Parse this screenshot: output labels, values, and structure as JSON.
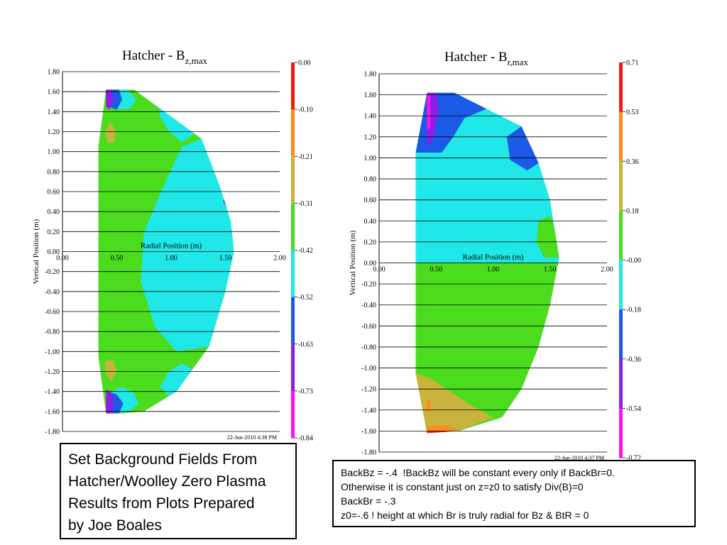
{
  "chart_data": [
    {
      "type": "heatmap",
      "title_main": "Hatcher - B",
      "title_sub": "z,max",
      "xlabel": "Radial Position (m)",
      "ylabel": "Vertical Position (m)",
      "xlim": [
        0,
        2
      ],
      "ylim": [
        -1.8,
        1.8
      ],
      "x_ticks": [
        "0.00",
        "0.50",
        "1.00",
        "1.50",
        "2.00"
      ],
      "y_ticks": [
        "1.80",
        "1.60",
        "1.40",
        "1.20",
        "1.00",
        "0.80",
        "0.60",
        "0.40",
        "0.20",
        "0.00",
        "-0.20",
        "-0.40",
        "-0.60",
        "-0.80",
        "-1.00",
        "-1.20",
        "-1.40",
        "-1.60",
        "-1.80"
      ],
      "colorbar_labels": [
        "0.00",
        "-0.10",
        "-0.21",
        "-0.31",
        "-0.42",
        "-0.52",
        "-0.63",
        "-0.73",
        "-0.84"
      ],
      "colorbar_colors": [
        "#ee1c0e",
        "#ff8c1a",
        "#c8b43c",
        "#4cdc1e",
        "#20e8e8",
        "#1a5ae6",
        "#8c1ee6",
        "#ff10f0"
      ],
      "footer": "22-Jun-2010   4:38 PM",
      "boundary": [
        [
          0.33,
          1.05
        ],
        [
          0.4,
          1.62
        ],
        [
          0.66,
          1.62
        ],
        [
          1.28,
          1.13
        ],
        [
          1.45,
          0.65
        ],
        [
          1.55,
          0.3
        ],
        [
          1.58,
          0
        ],
        [
          1.5,
          -0.4
        ],
        [
          1.35,
          -0.95
        ],
        [
          1.05,
          -1.4
        ],
        [
          0.75,
          -1.6
        ],
        [
          0.55,
          -1.62
        ],
        [
          0.4,
          -1.62
        ],
        [
          0.33,
          -1.05
        ]
      ],
      "regions": [
        {
          "color": "#4cdc1e",
          "points": [
            [
              0.33,
              1.05
            ],
            [
              0.4,
              1.62
            ],
            [
              0.66,
              1.62
            ],
            [
              1.28,
              1.13
            ],
            [
              1.45,
              0.65
            ],
            [
              1.55,
              0.3
            ],
            [
              1.58,
              0
            ],
            [
              1.5,
              -0.4
            ],
            [
              1.35,
              -0.95
            ],
            [
              1.05,
              -1.4
            ],
            [
              0.75,
              -1.6
            ],
            [
              0.55,
              -1.62
            ],
            [
              0.4,
              -1.62
            ],
            [
              0.33,
              -1.05
            ]
          ]
        },
        {
          "color": "#20e8e8",
          "points": [
            [
              1.28,
              1.13
            ],
            [
              1.1,
              1.05
            ],
            [
              0.95,
              0.7
            ],
            [
              0.75,
              0.2
            ],
            [
              0.72,
              -0.3
            ],
            [
              0.85,
              -0.75
            ],
            [
              1.05,
              -1.0
            ],
            [
              1.35,
              -0.95
            ],
            [
              1.5,
              -0.4
            ],
            [
              1.58,
              0
            ],
            [
              1.55,
              0.3
            ],
            [
              1.45,
              0.65
            ]
          ]
        },
        {
          "color": "#20e8e8",
          "points": [
            [
              0.88,
              1.5
            ],
            [
              1.0,
              1.5
            ],
            [
              1.12,
              1.33
            ],
            [
              1.22,
              1.18
            ],
            [
              1.1,
              1.1
            ],
            [
              0.98,
              1.2
            ],
            [
              0.9,
              1.35
            ]
          ]
        },
        {
          "color": "#20e8e8",
          "points": [
            [
              0.9,
              -1.35
            ],
            [
              0.98,
              -1.2
            ],
            [
              1.1,
              -1.12
            ],
            [
              1.2,
              -1.18
            ],
            [
              1.05,
              -1.4
            ],
            [
              0.98,
              -1.45
            ]
          ]
        },
        {
          "color": "#20e8e8",
          "points": [
            [
              0.45,
              1.62
            ],
            [
              0.6,
              1.62
            ],
            [
              0.68,
              1.52
            ],
            [
              0.62,
              1.43
            ],
            [
              0.5,
              1.42
            ]
          ]
        },
        {
          "color": "#20e8e8",
          "points": [
            [
              0.45,
              -1.4
            ],
            [
              0.55,
              -1.35
            ],
            [
              0.66,
              -1.42
            ],
            [
              0.7,
              -1.52
            ],
            [
              0.62,
              -1.6
            ],
            [
              0.48,
              -1.62
            ]
          ]
        },
        {
          "color": "#1a5ae6",
          "points": [
            [
              0.42,
              1.62
            ],
            [
              0.52,
              1.62
            ],
            [
              0.55,
              1.52
            ],
            [
              0.5,
              1.42
            ],
            [
              0.42,
              1.45
            ]
          ]
        },
        {
          "color": "#1a5ae6",
          "points": [
            [
              0.42,
              -1.4
            ],
            [
              0.5,
              -1.43
            ],
            [
              0.56,
              -1.52
            ],
            [
              0.52,
              -1.62
            ],
            [
              0.42,
              -1.62
            ]
          ]
        },
        {
          "color": "#8c1ee6",
          "points": [
            [
              0.4,
              1.62
            ],
            [
              0.46,
              1.62
            ],
            [
              0.47,
              1.5
            ],
            [
              0.43,
              1.42
            ],
            [
              0.4,
              1.45
            ]
          ]
        },
        {
          "color": "#8c1ee6",
          "points": [
            [
              0.4,
              -1.38
            ],
            [
              0.46,
              -1.42
            ],
            [
              0.47,
              -1.52
            ],
            [
              0.46,
              -1.62
            ],
            [
              0.4,
              -1.62
            ]
          ]
        },
        {
          "color": "#c8b43c",
          "points": [
            [
              0.39,
              1.2
            ],
            [
              0.44,
              1.3
            ],
            [
              0.49,
              1.2
            ],
            [
              0.48,
              1.1
            ],
            [
              0.42,
              1.08
            ]
          ]
        },
        {
          "color": "#c8b43c",
          "points": [
            [
              0.39,
              -1.1
            ],
            [
              0.46,
              -1.08
            ],
            [
              0.5,
              -1.2
            ],
            [
              0.45,
              -1.3
            ],
            [
              0.4,
              -1.22
            ]
          ]
        },
        {
          "color": "#1a5ae6",
          "points": [
            [
              1.5,
              0.58
            ],
            [
              1.55,
              0.45
            ],
            [
              1.53,
              0.4
            ],
            [
              1.48,
              0.5
            ]
          ]
        },
        {
          "color": "#1a5ae6",
          "points": [
            [
              1.48,
              -0.5
            ],
            [
              1.53,
              -0.45
            ],
            [
              1.5,
              -0.62
            ],
            [
              1.45,
              -0.65
            ]
          ]
        }
      ]
    },
    {
      "type": "heatmap",
      "title_main": "Hatcher - B",
      "title_sub": "r,max",
      "xlabel": "Radial Position (m)",
      "ylabel": "Vertical Position (m)",
      "xlim": [
        0,
        2
      ],
      "ylim": [
        -1.8,
        1.8
      ],
      "x_ticks": [
        "0.00",
        "0.50",
        "1.00",
        "1.50",
        "2.00"
      ],
      "y_ticks": [
        "1.80",
        "1.60",
        "1.40",
        "1.20",
        "1.00",
        "0.80",
        "0.60",
        "0.40",
        "0.20",
        "0.00",
        "-0.20",
        "-0.40",
        "-0.60",
        "-0.80",
        "-1.00",
        "-1.20",
        "-1.40",
        "-1.60",
        "-1.80"
      ],
      "colorbar_labels": [
        "0.71",
        "0.53",
        "0.36",
        "0.18",
        "-0.00",
        "-0.18",
        "-0.36",
        "-0.54",
        "-0.72"
      ],
      "colorbar_colors": [
        "#ee1c0e",
        "#ff8c1a",
        "#c8b43c",
        "#4cdc1e",
        "#20e8e8",
        "#1a5ae6",
        "#8c1ee6",
        "#ff10f0"
      ],
      "footer": "22-Jun-2010   4:37 PM",
      "boundary": [
        [
          0.32,
          1.05
        ],
        [
          0.42,
          1.62
        ],
        [
          0.66,
          1.62
        ],
        [
          1.25,
          1.3
        ],
        [
          1.4,
          0.95
        ],
        [
          1.5,
          0.6
        ],
        [
          1.58,
          0.05
        ],
        [
          1.5,
          -0.4
        ],
        [
          1.4,
          -0.8
        ],
        [
          1.25,
          -1.2
        ],
        [
          1.08,
          -1.47
        ],
        [
          0.7,
          -1.6
        ],
        [
          0.42,
          -1.62
        ],
        [
          0.32,
          -1.05
        ]
      ],
      "regions": [
        {
          "color": "#20e8e8",
          "points": [
            [
              0.32,
              1.05
            ],
            [
              0.42,
              1.62
            ],
            [
              0.66,
              1.62
            ],
            [
              1.25,
              1.3
            ],
            [
              1.4,
              0.95
            ],
            [
              1.5,
              0.6
            ],
            [
              1.58,
              0.05
            ],
            [
              1.58,
              0.0
            ],
            [
              0.32,
              0.0
            ]
          ]
        },
        {
          "color": "#4cdc1e",
          "points": [
            [
              0.32,
              0.0
            ],
            [
              1.58,
              0.0
            ],
            [
              1.5,
              -0.4
            ],
            [
              1.4,
              -0.8
            ],
            [
              1.25,
              -1.2
            ],
            [
              1.08,
              -1.47
            ],
            [
              0.7,
              -1.6
            ],
            [
              0.42,
              -1.62
            ],
            [
              0.32,
              -1.05
            ]
          ]
        },
        {
          "color": "#4cdc1e",
          "points": [
            [
              1.5,
              0.45
            ],
            [
              1.4,
              0.4
            ],
            [
              1.38,
              0.2
            ],
            [
              1.45,
              0.05
            ],
            [
              1.58,
              0.05
            ],
            [
              1.55,
              0.3
            ]
          ]
        },
        {
          "color": "#4cdc1e",
          "points": [
            [
              1.35,
              -0.1
            ],
            [
              1.5,
              -0.08
            ],
            [
              1.55,
              -0.25
            ],
            [
              1.5,
              -0.35
            ],
            [
              1.4,
              -0.3
            ]
          ]
        },
        {
          "color": "#1a5ae6",
          "points": [
            [
              0.32,
              1.05
            ],
            [
              0.42,
              1.62
            ],
            [
              0.66,
              1.62
            ],
            [
              0.95,
              1.47
            ],
            [
              0.75,
              1.38
            ],
            [
              0.65,
              1.2
            ],
            [
              0.55,
              1.05
            ]
          ]
        },
        {
          "color": "#1a5ae6",
          "points": [
            [
              1.12,
              1.2
            ],
            [
              1.25,
              1.3
            ],
            [
              1.4,
              0.95
            ],
            [
              1.3,
              0.88
            ],
            [
              1.15,
              0.98
            ]
          ]
        },
        {
          "color": "#8c1ee6",
          "points": [
            [
              0.42,
              1.62
            ],
            [
              0.5,
              1.62
            ],
            [
              0.52,
              1.45
            ],
            [
              0.48,
              1.2
            ],
            [
              0.42,
              1.1
            ]
          ]
        },
        {
          "color": "#ff10f0",
          "points": [
            [
              0.42,
              1.6
            ],
            [
              0.45,
              1.6
            ],
            [
              0.45,
              1.3
            ],
            [
              0.42,
              1.25
            ]
          ]
        },
        {
          "color": "#c8b43c",
          "points": [
            [
              0.32,
              -1.05
            ],
            [
              0.45,
              -1.1
            ],
            [
              0.62,
              -1.22
            ],
            [
              0.8,
              -1.35
            ],
            [
              1.0,
              -1.47
            ],
            [
              0.7,
              -1.6
            ],
            [
              0.42,
              -1.62
            ],
            [
              0.33,
              -1.3
            ]
          ]
        },
        {
          "color": "#ff8c1a",
          "points": [
            [
              0.42,
              -1.55
            ],
            [
              0.6,
              -1.55
            ],
            [
              0.68,
              -1.58
            ],
            [
              0.62,
              -1.62
            ],
            [
              0.42,
              -1.62
            ]
          ]
        },
        {
          "color": "#ff8c1a",
          "points": [
            [
              0.42,
              -1.3
            ],
            [
              0.45,
              -1.32
            ],
            [
              0.45,
              -1.42
            ],
            [
              0.42,
              -1.42
            ]
          ]
        },
        {
          "color": "#ee1c0e",
          "points": [
            [
              0.42,
              -1.6
            ],
            [
              0.6,
              -1.6
            ],
            [
              0.6,
              -1.62
            ],
            [
              0.42,
              -1.62
            ]
          ]
        }
      ]
    }
  ],
  "notes": {
    "left": [
      "Set Background Fields From",
      "Hatcher/Woolley Zero Plasma",
      "Results from Plots Prepared",
      "by Joe Boales"
    ],
    "right": [
      "BackBz = -.4  !BackBz will be constant every only if BackBr=0.",
      "Otherwise it is constant just on z=z0 to satisfy Div(B)=0",
      "BackBr = -.3",
      "z0=-.6 ! height at which Br is truly radial for Bz & BtR = 0"
    ]
  }
}
